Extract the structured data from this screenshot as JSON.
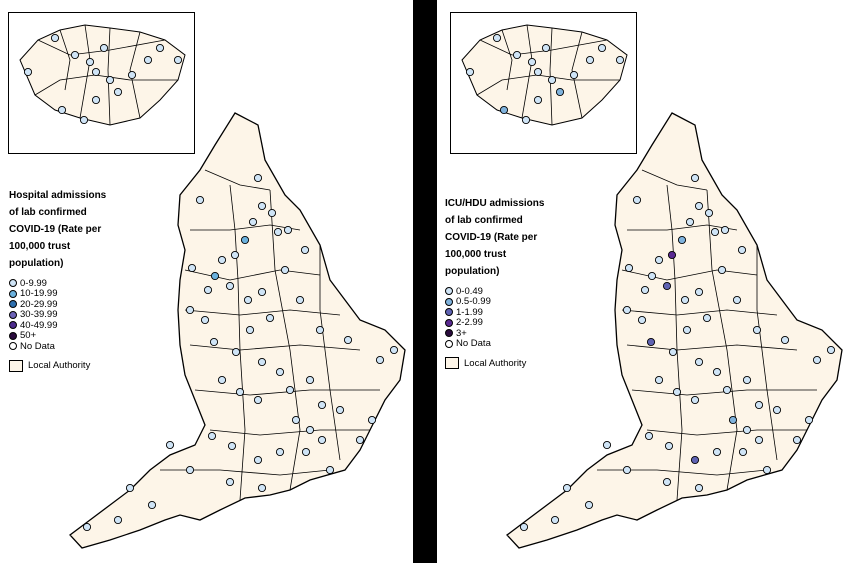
{
  "colors": {
    "land": "#fdf5e8",
    "border": "#000000"
  },
  "panels": [
    {
      "legend": {
        "title": "Hospital admissions\nof lab confirmed\nCOVID-19 (Rate per\n100,000 trust\npopulation)",
        "items": [
          {
            "label": "0-9.99",
            "color": "#cfe4f6"
          },
          {
            "label": "10-19.99",
            "color": "#6bb1dd"
          },
          {
            "label": "20-29.99",
            "color": "#2e6fae"
          },
          {
            "label": "30-39.99",
            "color": "#6d63b7"
          },
          {
            "label": "40-49.99",
            "color": "#4c2b8c"
          },
          {
            "label": "50+",
            "color": "#2a0b3d"
          },
          {
            "label": "No Data",
            "color": "#ffffff"
          }
        ],
        "local_authority": "Local Authority"
      }
    },
    {
      "legend": {
        "title": "ICU/HDU admissions\nof lab confirmed\nCOVID-19 (Rate per\n100,000 trust\npopulation)",
        "items": [
          {
            "label": "0-0.49",
            "color": "#cfe4f6"
          },
          {
            "label": "0.5-0.99",
            "color": "#7fb2dc"
          },
          {
            "label": "1-1.99",
            "color": "#5f63b3"
          },
          {
            "label": "2-2.99",
            "color": "#5a2a92"
          },
          {
            "label": "3+",
            "color": "#2a0b3d"
          },
          {
            "label": "No Data",
            "color": "#ffffff"
          }
        ],
        "local_authority": "Local Authority"
      }
    }
  ]
}
